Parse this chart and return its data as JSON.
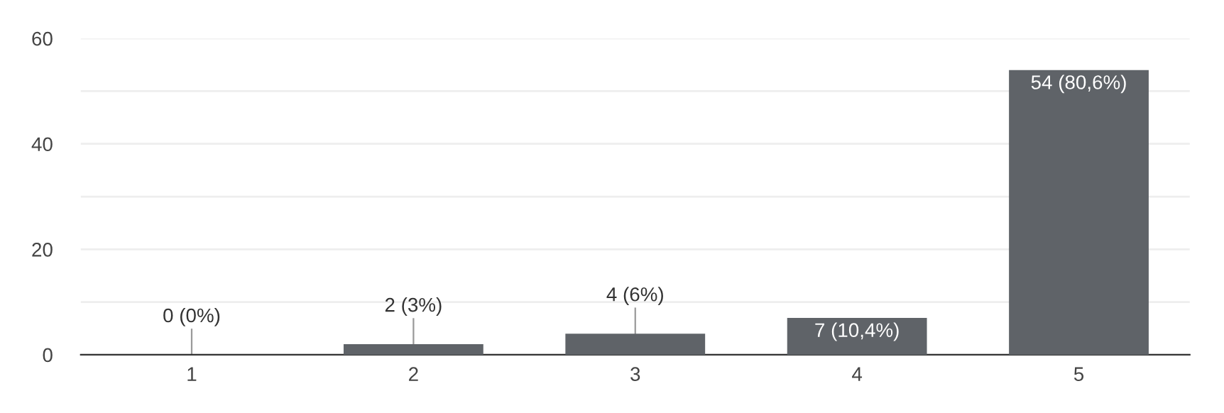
{
  "chart_data": {
    "type": "bar",
    "categories": [
      "1",
      "2",
      "3",
      "4",
      "5"
    ],
    "values": [
      0,
      2,
      4,
      7,
      54
    ],
    "value_labels": [
      "0 (0%)",
      "2 (3%)",
      "4 (6%)",
      "7 (10,4%)",
      "54 (80,6%)"
    ],
    "color": "#5f6368",
    "ylim": [
      0,
      60
    ],
    "yticks": [
      0,
      {
        "value": 10,
        "label": null
      },
      20,
      {
        "value": 30,
        "label": null
      },
      40,
      {
        "value": 50,
        "label": null
      },
      60
    ],
    "grid": "y",
    "legend": false
  }
}
